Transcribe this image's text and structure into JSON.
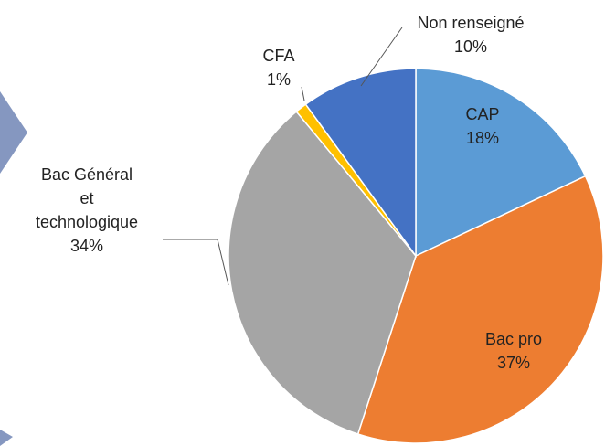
{
  "chart_data": {
    "type": "pie",
    "categories": [
      "CAP",
      "Bac pro",
      "Bac Général\net\ntechnologique",
      "CFA",
      "Non renseigné"
    ],
    "values": [
      18,
      37,
      34,
      1,
      10
    ],
    "value_labels": [
      "18%",
      "37%",
      "34%",
      "1%",
      "10%"
    ],
    "colors": [
      "#5b9bd5",
      "#ed7d31",
      "#a5a5a5",
      "#ffc000",
      "#4472c4"
    ]
  }
}
